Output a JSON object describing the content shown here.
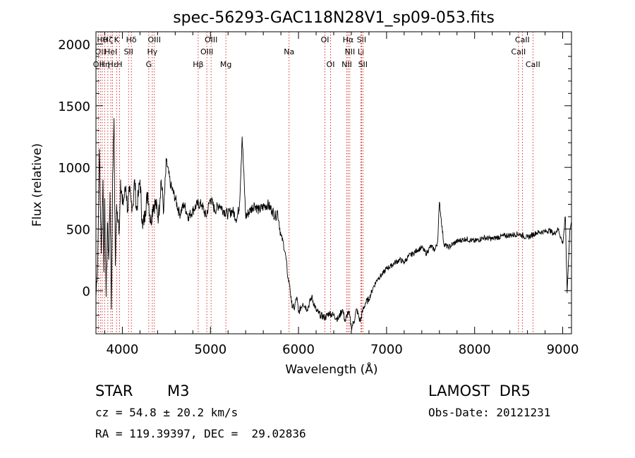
{
  "info": {
    "object_class": "STAR",
    "subclass": "M3",
    "survey": "LAMOST  DR5",
    "redshift_text": "cz = 54.8 ± 20.2 km/s",
    "obs_date": "Obs-Date: 20121231",
    "coords": "RA = 119.39397, DEC =  29.02836"
  },
  "colors": {
    "spectrum": "#000000",
    "line_marker": "#cc0000",
    "axes": "#000000"
  },
  "chart_data": {
    "type": "line",
    "title": "spec-56293-GAC118N28V1_sp09-053.fits",
    "xlabel": "Wavelength (Å)",
    "ylabel": "Flux (relative)",
    "xlim": [
      3700,
      9100
    ],
    "ylim": [
      -350,
      2100
    ],
    "xticks": [
      4000,
      5000,
      6000,
      7000,
      8000,
      9000
    ],
    "yticks": [
      0,
      500,
      1000,
      1500,
      2000
    ],
    "grid": false,
    "series": [
      {
        "x": [
          3700,
          3720,
          3740,
          3760,
          3780,
          3790,
          3800,
          3815,
          3830,
          3845,
          3860,
          3875,
          3890,
          3905,
          3920,
          3935,
          3950,
          3965,
          3980,
          4000,
          4020,
          4040,
          4060,
          4080,
          4100,
          4120,
          4140,
          4160,
          4180,
          4200,
          4230,
          4260,
          4290,
          4320,
          4350,
          4380,
          4410,
          4440,
          4470,
          4500,
          4550,
          4600,
          4650,
          4700,
          4750,
          4800,
          4850,
          4900,
          4950,
          5000,
          5050,
          5100,
          5150,
          5200,
          5250,
          5300,
          5330,
          5360,
          5400,
          5450,
          5500,
          5550,
          5600,
          5650,
          5700,
          5740,
          5760,
          5780,
          5800,
          5830,
          5860,
          5880,
          5900,
          5920,
          5950,
          5980,
          6000,
          6050,
          6100,
          6150,
          6200,
          6250,
          6300,
          6350,
          6400,
          6450,
          6500,
          6530,
          6560,
          6580,
          6600,
          6630,
          6660,
          6700,
          6730,
          6760,
          6800,
          6850,
          6900,
          6950,
          7000,
          7050,
          7100,
          7150,
          7200,
          7250,
          7300,
          7350,
          7400,
          7450,
          7500,
          7550,
          7580,
          7600,
          7650,
          7700,
          7800,
          7900,
          8000,
          8100,
          8200,
          8300,
          8400,
          8500,
          8600,
          8700,
          8800,
          8850,
          8900,
          8950,
          9000,
          9030,
          9050,
          9080,
          9100
        ],
        "y": [
          -50,
          250,
          1150,
          300,
          900,
          150,
          750,
          -50,
          550,
          250,
          800,
          -150,
          950,
          1400,
          200,
          700,
          550,
          500,
          900,
          700,
          750,
          850,
          650,
          800,
          720,
          700,
          900,
          650,
          760,
          900,
          500,
          650,
          800,
          550,
          700,
          700,
          600,
          900,
          650,
          1050,
          850,
          750,
          620,
          700,
          600,
          650,
          700,
          700,
          600,
          750,
          650,
          700,
          650,
          620,
          650,
          580,
          700,
          1250,
          600,
          650,
          700,
          650,
          680,
          700,
          650,
          600,
          650,
          550,
          450,
          380,
          250,
          100,
          50,
          -100,
          -150,
          -50,
          -180,
          -100,
          -150,
          -50,
          -160,
          -200,
          -220,
          -180,
          -200,
          -230,
          -150,
          -250,
          -180,
          -200,
          -300,
          -250,
          -150,
          -250,
          -160,
          -100,
          -70,
          30,
          100,
          130,
          180,
          200,
          230,
          250,
          230,
          280,
          300,
          330,
          350,
          300,
          360,
          330,
          400,
          720,
          380,
          350,
          400,
          420,
          400,
          430,
          420,
          440,
          450,
          460,
          430,
          470,
          480,
          490,
          460,
          500,
          380,
          600,
          -20,
          480,
          560
        ]
      }
    ],
    "line_markers": [
      {
        "x": 3727,
        "label": "OII",
        "row": 2
      },
      {
        "x": 3750,
        "label": "OII",
        "row": 1
      },
      {
        "x": 3771,
        "label": "Hθ",
        "row": 0
      },
      {
        "x": 3798,
        "label": "Hη",
        "row": 2
      },
      {
        "x": 3835,
        "label": "Hζ",
        "row": 0
      },
      {
        "x": 3869,
        "label": "HeI",
        "row": 1
      },
      {
        "x": 3889,
        "label": "Hε",
        "row": 2
      },
      {
        "x": 3934,
        "label": "K",
        "row": 0
      },
      {
        "x": 3968,
        "label": "H",
        "row": 2
      },
      {
        "x": 4070,
        "label": "SII",
        "row": 1
      },
      {
        "x": 4102,
        "label": "Hδ",
        "row": 0
      },
      {
        "x": 4300,
        "label": "G",
        "row": 2
      },
      {
        "x": 4340,
        "label": "Hγ",
        "row": 1
      },
      {
        "x": 4363,
        "label": "OIII",
        "row": 0
      },
      {
        "x": 4861,
        "label": "Hβ",
        "row": 2
      },
      {
        "x": 4959,
        "label": "OIII",
        "row": 1
      },
      {
        "x": 5007,
        "label": "OIII",
        "row": 0
      },
      {
        "x": 5175,
        "label": "Mg",
        "row": 2
      },
      {
        "x": 5893,
        "label": "Na",
        "row": 1
      },
      {
        "x": 6300,
        "label": "OI",
        "row": 0
      },
      {
        "x": 6364,
        "label": "OI",
        "row": 2
      },
      {
        "x": 6548,
        "label": "NII",
        "row": 2
      },
      {
        "x": 6563,
        "label": "Hα",
        "row": 0
      },
      {
        "x": 6583,
        "label": "NII",
        "row": 1
      },
      {
        "x": 6708,
        "label": "Li",
        "row": 1
      },
      {
        "x": 6716,
        "label": "SII",
        "row": 0
      },
      {
        "x": 6731,
        "label": "SII",
        "row": 2
      },
      {
        "x": 8498,
        "label": "CaII",
        "row": 1
      },
      {
        "x": 8542,
        "label": "CaII",
        "row": 0
      },
      {
        "x": 8662,
        "label": "CaII",
        "row": 2
      }
    ]
  }
}
